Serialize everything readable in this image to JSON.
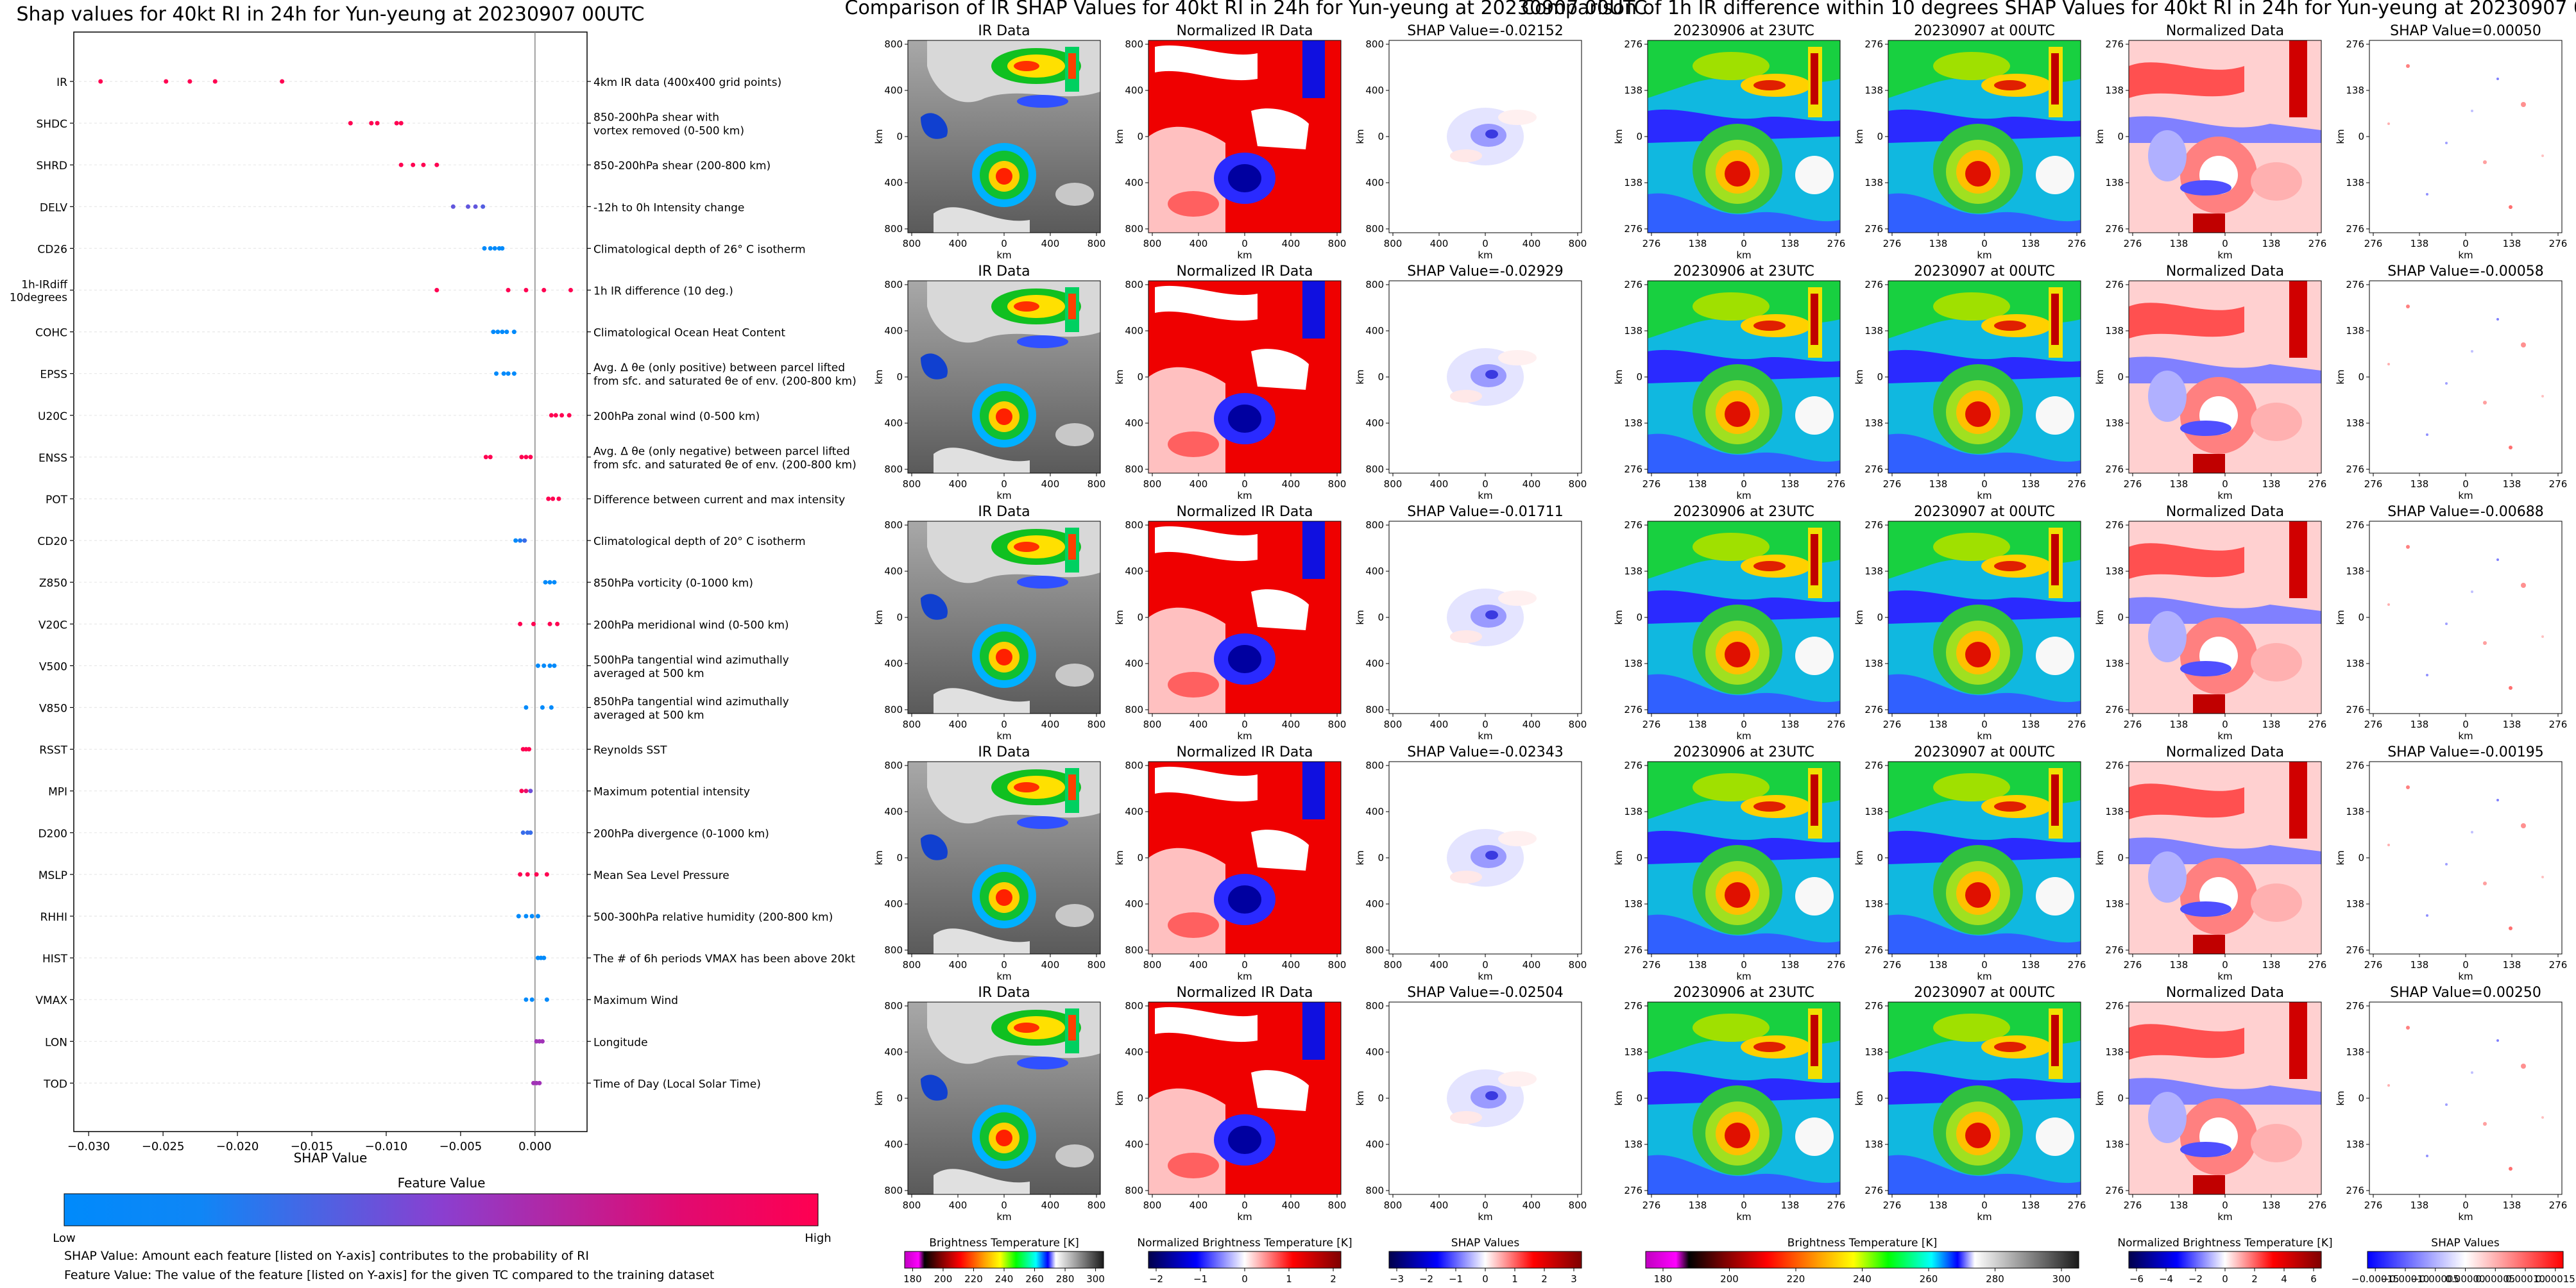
{
  "chart_data": [
    {
      "type": "scatter",
      "title": "Shap values for 40kt RI in 24h for Yun-yeung at 20230907 00UTC",
      "xlabel": "SHAP Value",
      "xlim": [
        -0.031,
        0.0035
      ],
      "xticks": [
        -0.03,
        -0.025,
        -0.02,
        -0.015,
        -0.01,
        -0.005,
        0.0
      ],
      "xtick_labels": [
        "−0.030",
        "−0.025",
        "−0.020",
        "−0.015",
        "−0.010",
        "−0.005",
        "0.000"
      ],
      "zero_line": 0,
      "colorbar": {
        "title": "Feature Value",
        "low_label": "Low",
        "high_label": "High",
        "colors": [
          "#008afb",
          "#8a3fd0",
          "#ff0051"
        ]
      },
      "features": [
        {
          "name": "IR",
          "description": "4km IR data (400x400 grid points)",
          "values": [
            -0.0292,
            -0.0248,
            -0.0232,
            -0.0215,
            -0.017
          ],
          "value_levels": [
            1,
            1,
            1,
            1,
            1
          ]
        },
        {
          "name": "SHDC",
          "description": "850-200hPa shear with\nvortex removed (0-500 km)",
          "values": [
            -0.0124,
            -0.011,
            -0.0106,
            -0.0093,
            -0.009
          ],
          "value_levels": [
            1,
            1,
            1,
            1,
            1
          ]
        },
        {
          "name": "SHRD",
          "description": "850-200hPa shear (200-800 km)",
          "values": [
            -0.009,
            -0.0082,
            -0.0075,
            -0.0066
          ],
          "value_levels": [
            1,
            1,
            1,
            1
          ]
        },
        {
          "name": "DELV",
          "description": "-12h to 0h Intensity change",
          "values": [
            -0.0055,
            -0.0045,
            -0.004,
            -0.0035
          ],
          "value_levels": [
            0.35,
            0.35,
            0.35,
            0.3
          ]
        },
        {
          "name": "CD26",
          "description": "Climatological depth of 26° C isotherm",
          "values": [
            -0.0034,
            -0.003,
            -0.0027,
            -0.0024,
            -0.0022
          ],
          "value_levels": [
            0,
            0,
            0,
            0,
            0
          ]
        },
        {
          "name": "1h-IRdiff\n10degrees",
          "description": "1h IR difference (10 deg.)",
          "values": [
            -0.0066,
            -0.0018,
            -0.0006,
            0.0006,
            0.0024
          ],
          "value_levels": [
            1,
            1,
            1,
            1,
            1
          ]
        },
        {
          "name": "COHC",
          "description": "Climatological Ocean Heat Content",
          "values": [
            -0.0028,
            -0.0025,
            -0.0022,
            -0.0019,
            -0.0014
          ],
          "value_levels": [
            0,
            0,
            0,
            0,
            0
          ]
        },
        {
          "name": "EPSS",
          "description": "Avg. Δ θe (only positive) between parcel lifted\nfrom sfc. and saturated θe of env. (200-800 km)",
          "values": [
            -0.0026,
            -0.0021,
            -0.0018,
            -0.0014
          ],
          "value_levels": [
            0,
            0,
            0,
            0
          ]
        },
        {
          "name": "U20C",
          "description": "200hPa zonal wind (0-500 km)",
          "values": [
            0.0011,
            0.0014,
            0.0018,
            0.0023
          ],
          "value_levels": [
            1,
            1,
            1,
            1
          ]
        },
        {
          "name": "ENSS",
          "description": "Avg. Δ θe (only negative) between parcel lifted\nfrom sfc. and saturated θe of env. (200-800 km)",
          "values": [
            -0.0033,
            -0.003,
            -0.0009,
            -0.0006,
            -0.0003
          ],
          "value_levels": [
            1,
            1,
            1,
            1,
            1
          ]
        },
        {
          "name": "POT",
          "description": "Difference between current and max intensity",
          "values": [
            0.0009,
            0.0012,
            0.0016
          ],
          "value_levels": [
            1,
            1,
            1
          ]
        },
        {
          "name": "CD20",
          "description": "Climatological depth of 20° C isotherm",
          "values": [
            -0.0013,
            -0.001,
            -0.0007
          ],
          "value_levels": [
            0,
            0.1,
            0.2
          ]
        },
        {
          "name": "Z850",
          "description": "850hPa vorticity (0-1000 km)",
          "values": [
            0.0007,
            0.001,
            0.0013
          ],
          "value_levels": [
            0,
            0,
            0
          ]
        },
        {
          "name": "V20C",
          "description": "200hPa meridional wind (0-500 km)",
          "values": [
            -0.001,
            -0.0001,
            0.001,
            0.0015
          ],
          "value_levels": [
            1,
            1,
            1,
            1
          ]
        },
        {
          "name": "V500",
          "description": "500hPa tangential wind azimuthally\naveraged at 500 km",
          "values": [
            0.0002,
            0.0006,
            0.001,
            0.0013
          ],
          "value_levels": [
            0,
            0,
            0,
            0
          ]
        },
        {
          "name": "V850",
          "description": "850hPa tangential wind azimuthally\naveraged at 500 km",
          "values": [
            -0.0006,
            0.0005,
            0.0011
          ],
          "value_levels": [
            0,
            0,
            0
          ]
        },
        {
          "name": "RSST",
          "description": "Reynolds SST",
          "values": [
            -0.0008,
            -0.0006,
            -0.0004
          ],
          "value_levels": [
            1,
            1,
            1
          ]
        },
        {
          "name": "MPI",
          "description": "Maximum potential intensity",
          "values": [
            -0.0009,
            -0.0006,
            -0.0003
          ],
          "value_levels": [
            1,
            0.9,
            0.4
          ]
        },
        {
          "name": "D200",
          "description": "200hPa divergence (0-1000 km)",
          "values": [
            -0.0008,
            -0.0005,
            -0.0003
          ],
          "value_levels": [
            0.2,
            0.2,
            0.2
          ]
        },
        {
          "name": "MSLP",
          "description": "Mean Sea Level Pressure",
          "values": [
            -0.001,
            -0.0005,
            0.0001,
            0.0008
          ],
          "value_levels": [
            1,
            1,
            1,
            1
          ]
        },
        {
          "name": "RHHI",
          "description": "500-300hPa relative humidity (200-800 km)",
          "values": [
            -0.0011,
            -0.0006,
            -0.0002,
            0.0002
          ],
          "value_levels": [
            0,
            0,
            0,
            0
          ]
        },
        {
          "name": "HIST",
          "description": "The # of 6h periods VMAX has been above 20kt",
          "values": [
            0.0002,
            0.0004,
            0.0006
          ],
          "value_levels": [
            0,
            0,
            0
          ]
        },
        {
          "name": "VMAX",
          "description": "Maximum Wind",
          "values": [
            -0.0006,
            -0.0002,
            0.0008
          ],
          "value_levels": [
            0,
            0,
            0
          ]
        },
        {
          "name": "LON",
          "description": "Longitude",
          "values": [
            0.0001,
            0.0003,
            0.0005
          ],
          "value_levels": [
            0.6,
            0.6,
            0.6
          ]
        },
        {
          "name": "TOD",
          "description": "Time of Day (Local Solar Time)",
          "values": [
            -0.0001,
            0.0001,
            0.0003
          ],
          "value_levels": [
            0.6,
            0.6,
            0.6
          ]
        }
      ]
    },
    {
      "type": "heatmap",
      "title": "Comparison of IR SHAP Values for 40kt RI in 24h for Yun-yeung at 20230907 00UTC",
      "column_titles": [
        "IR Data",
        "Normalized IR Data"
      ],
      "shap_titles": [
        "SHAP Value=-0.02152",
        "SHAP Value=-0.02929",
        "SHAP Value=-0.01711",
        "SHAP Value=-0.02343",
        "SHAP Value=-0.02504"
      ],
      "shap_values": [
        -0.02152,
        -0.02929,
        -0.01711,
        -0.02343,
        -0.02504
      ],
      "xlabel": "km",
      "ylabel": "km",
      "ticks": [
        "800",
        "400",
        "0",
        "400",
        "800"
      ],
      "colorbars": [
        {
          "label": "Brightness Temperature [K]",
          "ticks": [
            "180",
            "200",
            "220",
            "240",
            "260",
            "280",
            "300"
          ]
        },
        {
          "label": "Normalized Brightness Temperature [K]",
          "ticks": [
            "−2",
            "−1",
            "0",
            "1",
            "2"
          ]
        },
        {
          "label": "SHAP Values",
          "ticks": [
            "−3",
            "−2",
            "−1",
            "0",
            "1",
            "2",
            "3"
          ],
          "offset": "1e−5"
        }
      ]
    },
    {
      "type": "heatmap",
      "title": "Comparison of 1h IR difference within 10 degrees SHAP Values for 40kt RI in 24h for Yun-yeung at 20230907 00UTC",
      "column_titles": [
        "20230906 at 23UTC",
        "20230907 at 00UTC",
        "Normalized Data"
      ],
      "shap_titles": [
        "SHAP Value=0.00050",
        "SHAP Value=-0.00058",
        "SHAP Value=-0.00688",
        "SHAP Value=-0.00195",
        "SHAP Value=0.00250"
      ],
      "shap_values": [
        0.0005,
        -0.00058,
        -0.00688,
        -0.00195,
        0.0025
      ],
      "xlabel": "km",
      "ylabel": "km",
      "ticks": [
        "276",
        "138",
        "0",
        "138",
        "276"
      ],
      "colorbars": [
        {
          "label": "Brightness Temperature [K]",
          "ticks": [
            "180",
            "200",
            "220",
            "240",
            "260",
            "280",
            "300"
          ]
        },
        {
          "label": "Normalized Brightness Temperature [K]",
          "ticks": [
            "−6",
            "−4",
            "−2",
            "0",
            "2",
            "4",
            "6"
          ]
        },
        {
          "label": "SHAP Values",
          "ticks": [
            "−0.00015",
            "−0.00010",
            "−0.00005",
            "0.00000",
            "0.00005",
            "0.00010",
            "0.00015"
          ]
        }
      ]
    }
  ],
  "notes": {
    "shap_value_def": "SHAP Value: Amount each feature [listed on Y-axis] contributes to the probability of RI",
    "feature_value_def": "Feature Value: The value of the feature [listed on Y-axis] for the given TC compared to the training dataset"
  },
  "colors": {
    "low": "#008afb",
    "mid": "#8a3fd0",
    "high": "#ff0051",
    "axis": "#000000",
    "gridline": "#e8e8e8"
  }
}
